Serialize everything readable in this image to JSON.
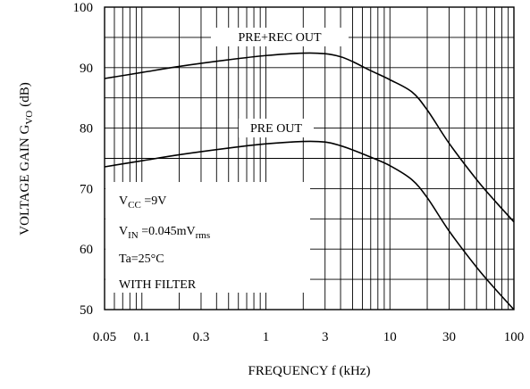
{
  "chart_data": {
    "type": "line",
    "x_scale": "log",
    "xlim": [
      0.05,
      100
    ],
    "ylim": [
      50,
      100
    ],
    "grid": true,
    "xlabel": "FREQUENCY f (kHz)",
    "ylabel": "VOLTAGE GAIN G",
    "ylabel_sub": "VO",
    "ylabel_unit": "(dB)",
    "x_ticks": [
      0.05,
      0.1,
      0.3,
      1,
      3,
      10,
      30,
      100
    ],
    "x_tick_labels": [
      "0.05",
      "0.1",
      "0.3",
      "1",
      "3",
      "10",
      "30",
      "100"
    ],
    "y_ticks": [
      50,
      60,
      70,
      80,
      90,
      100
    ],
    "y_tick_labels": [
      "50",
      "60",
      "70",
      "80",
      "90",
      "100"
    ],
    "series": [
      {
        "name": "PRE+REC OUT",
        "x": [
          0.05,
          0.1,
          0.2,
          0.5,
          1,
          2,
          3,
          4,
          5,
          7,
          10,
          15,
          20,
          30,
          50,
          70,
          100
        ],
        "y": [
          88.2,
          89.2,
          90.2,
          91.3,
          92.0,
          92.4,
          92.3,
          91.8,
          91.0,
          89.5,
          88.0,
          86.0,
          83.0,
          77.5,
          71.5,
          68.0,
          64.5
        ]
      },
      {
        "name": "PRE OUT",
        "x": [
          0.05,
          0.1,
          0.2,
          0.5,
          1,
          2,
          3,
          4,
          5,
          7,
          10,
          15,
          20,
          30,
          50,
          70,
          100
        ],
        "y": [
          73.6,
          74.6,
          75.6,
          76.7,
          77.4,
          77.8,
          77.7,
          77.1,
          76.4,
          75.2,
          73.8,
          71.5,
          68.5,
          63.0,
          57.0,
          53.5,
          50.0
        ]
      }
    ],
    "conditions": {
      "vcc": {
        "main": "V",
        "sub": "CC",
        "rest": " =9V"
      },
      "vin": {
        "main": "V",
        "sub": "IN",
        "mid": " =0.045mV",
        "sub2": "rms"
      },
      "ta": "Ta=25°C",
      "filter": "WITH FILTER"
    }
  }
}
